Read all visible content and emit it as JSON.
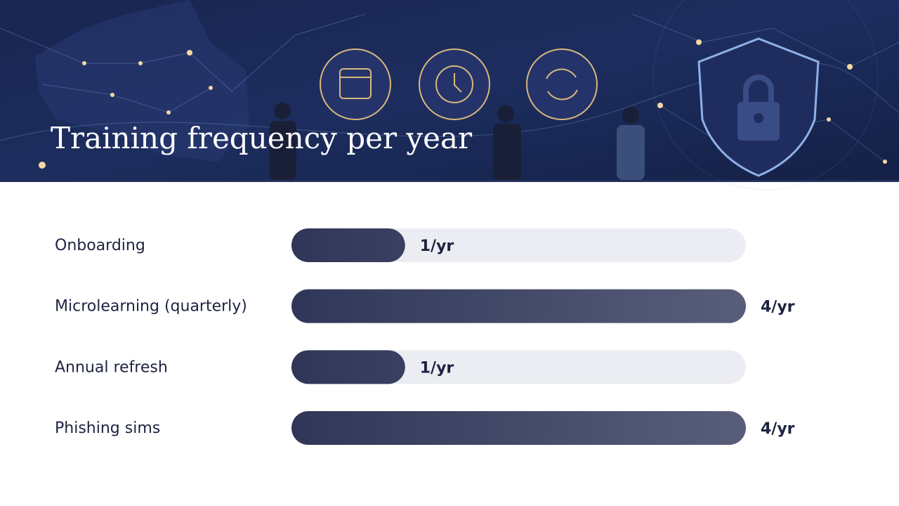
{
  "chart_data": {
    "type": "bar",
    "title": "Training frequency per year",
    "categories": [
      "Onboarding",
      "Microlearning (quarterly)",
      "Annual refresh",
      "Phishing sims"
    ],
    "values": [
      1,
      4,
      1,
      4
    ],
    "value_labels": [
      "1/yr",
      "4/yr",
      "1/yr",
      "4/yr"
    ],
    "color": "#2f3658",
    "xlim": [
      0,
      4
    ]
  }
}
